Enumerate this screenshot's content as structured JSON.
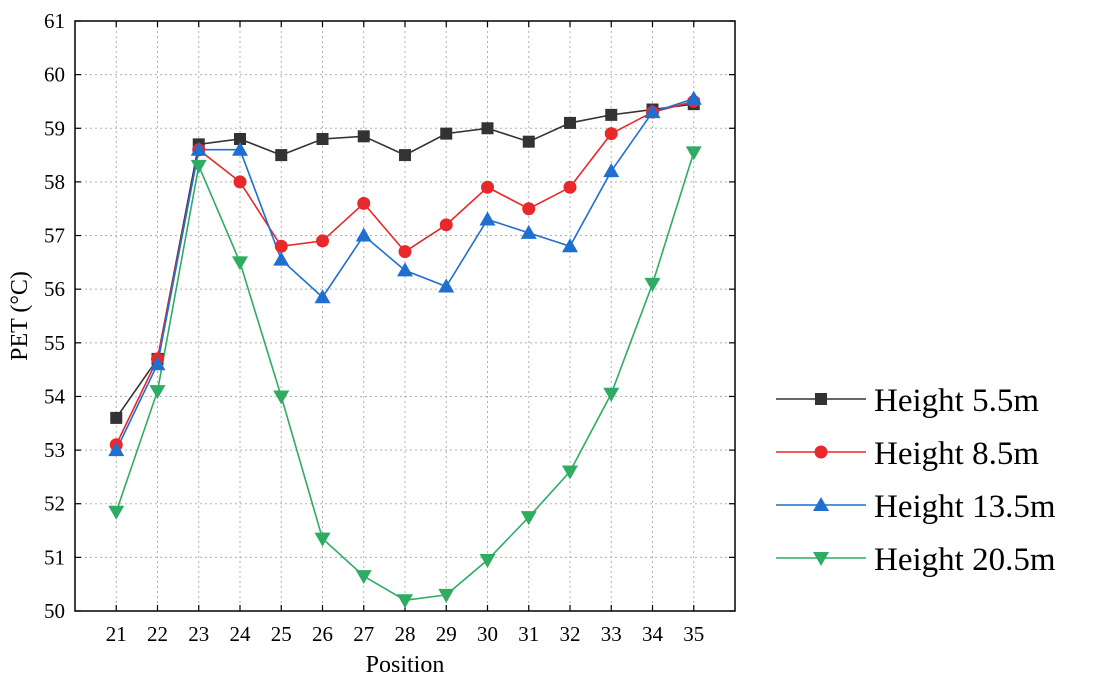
{
  "chart_data": {
    "type": "line",
    "xlabel": "Position",
    "ylabel": "PET (°C)",
    "x": [
      21,
      22,
      23,
      24,
      25,
      26,
      27,
      28,
      29,
      30,
      31,
      32,
      33,
      34,
      35
    ],
    "xlim": [
      20,
      36
    ],
    "ylim": [
      50,
      61
    ],
    "xticks": [
      21,
      22,
      23,
      24,
      25,
      26,
      27,
      28,
      29,
      30,
      31,
      32,
      33,
      34,
      35
    ],
    "yticks": [
      50,
      51,
      52,
      53,
      54,
      55,
      56,
      57,
      58,
      59,
      60,
      61
    ],
    "grid": true,
    "legend_position": "right",
    "series": [
      {
        "name": "Height 5.5m",
        "color": "#333333",
        "marker": "square",
        "values": [
          53.6,
          54.7,
          58.7,
          58.8,
          58.5,
          58.8,
          58.85,
          58.5,
          58.9,
          59.0,
          58.75,
          59.1,
          59.25,
          59.35,
          59.45
        ]
      },
      {
        "name": "Height 8.5m",
        "color": "#e8282b",
        "marker": "circle",
        "values": [
          53.1,
          54.7,
          58.6,
          58.0,
          56.8,
          56.9,
          57.6,
          56.7,
          57.2,
          57.9,
          57.5,
          57.9,
          58.9,
          59.3,
          59.5
        ]
      },
      {
        "name": "Height 13.5m",
        "color": "#1f6fd1",
        "marker": "triangle-up",
        "values": [
          53.0,
          54.6,
          58.6,
          58.6,
          56.55,
          55.85,
          57.0,
          56.35,
          56.05,
          57.3,
          57.05,
          56.8,
          58.2,
          59.3,
          59.55
        ]
      },
      {
        "name": "Height 20.5m",
        "color": "#2eac62",
        "marker": "triangle-down",
        "values": [
          51.85,
          54.1,
          58.3,
          56.5,
          54.0,
          51.35,
          50.65,
          50.2,
          50.3,
          50.95,
          51.75,
          52.6,
          54.05,
          56.1,
          58.55
        ]
      }
    ]
  }
}
